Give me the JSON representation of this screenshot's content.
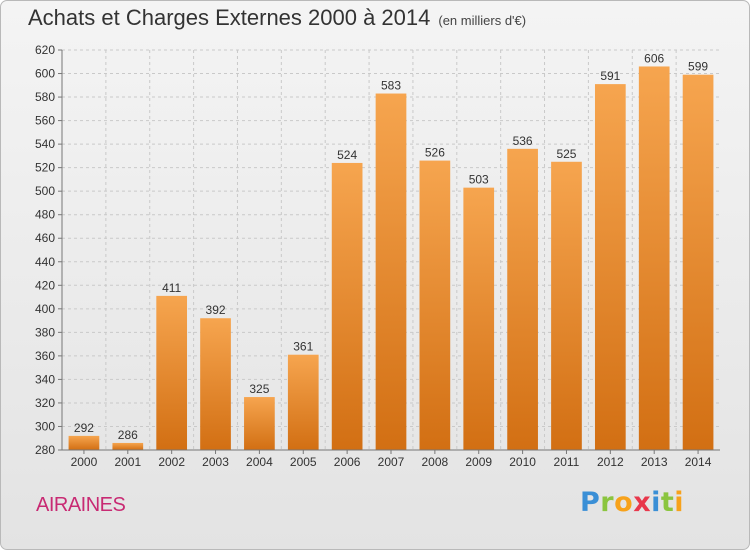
{
  "header": {
    "title": "Achats et Charges Externes 2000 à 2014",
    "unit": "(en milliers d'€)"
  },
  "footer": {
    "commune": "AIRAINES",
    "logo_letters": [
      "P",
      "r",
      "o",
      "x",
      "i",
      "t",
      "i"
    ],
    "logo_colors": [
      "#3a8fd6",
      "#8bc53f",
      "#f7a21b",
      "#e8374b",
      "#3a8fd6",
      "#8bc53f",
      "#f7a21b"
    ]
  },
  "colors": {
    "bar_light": "#f6a54f",
    "bar_dark": "#d26f13",
    "grid": "#c9c9c9",
    "axis": "#777777"
  },
  "chart_data": {
    "type": "bar",
    "title": "Achats et Charges Externes 2000 à 2014",
    "xlabel": "",
    "ylabel": "",
    "categories": [
      "2000",
      "2001",
      "2002",
      "2003",
      "2004",
      "2005",
      "2006",
      "2007",
      "2008",
      "2009",
      "2010",
      "2011",
      "2012",
      "2013",
      "2014"
    ],
    "values": [
      292,
      286,
      411,
      392,
      325,
      361,
      524,
      583,
      526,
      503,
      536,
      525,
      591,
      606,
      599
    ],
    "ylim": [
      280,
      620
    ],
    "yticks": [
      280,
      300,
      320,
      340,
      360,
      380,
      400,
      420,
      440,
      460,
      480,
      500,
      520,
      540,
      560,
      580,
      600,
      620
    ],
    "grid": "dashed horizontal",
    "legend": "none"
  }
}
